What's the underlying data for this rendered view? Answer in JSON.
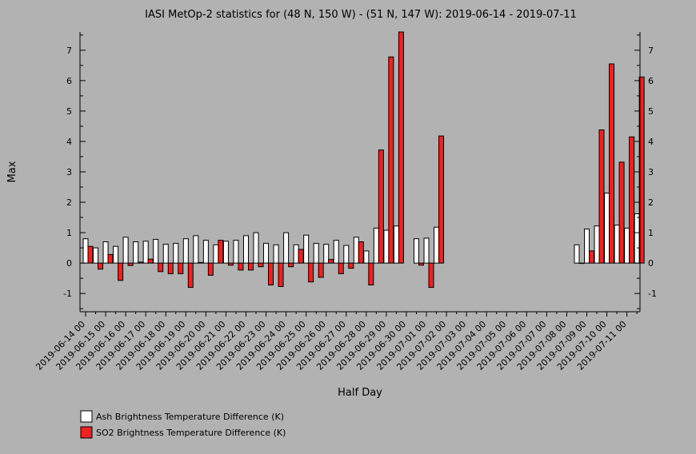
{
  "chart_data": {
    "type": "bar",
    "title": "IASI MetOp-2 statistics for (48 N, 150 W) - (51 N, 147 W): 2019-06-14 - 2019-07-11",
    "xlabel": "Half Day",
    "ylabel": "Max",
    "ylim": [
      -1.6,
      7.6
    ],
    "yticks": [
      -1,
      0,
      1,
      2,
      3,
      4,
      5,
      6,
      7
    ],
    "date_labels": [
      "2019-06-14 00",
      "2019-06-15 00",
      "2019-06-16 00",
      "2019-06-17 00",
      "2019-06-18 00",
      "2019-06-19 00",
      "2019-06-20 00",
      "2019-06-21 00",
      "2019-06-22 00",
      "2019-06-23 00",
      "2019-06-24 00",
      "2019-06-25 00",
      "2019-06-26 00",
      "2019-06-27 00",
      "2019-06-28 00",
      "2019-06-29 00",
      "2019-06-30 00",
      "2019-07-01 00",
      "2019-07-02 00",
      "2019-07-03 00",
      "2019-07-04 00",
      "2019-07-05 00",
      "2019-07-06 00",
      "2019-07-07 00",
      "2019-07-08 00",
      "2019-07-09 00",
      "2019-07-10 00",
      "2019-07-11 00"
    ],
    "periods": 56,
    "series": [
      {
        "name": "Ash Brightness Temperature Difference (K)",
        "color": "#ffffff",
        "values": [
          0.8,
          0.5,
          0.7,
          0.55,
          0.85,
          0.7,
          0.72,
          0.78,
          0.62,
          0.65,
          0.8,
          0.9,
          0.75,
          0.6,
          0.72,
          0.75,
          0.9,
          1.0,
          0.65,
          0.6,
          1.0,
          0.6,
          0.92,
          0.65,
          0.62,
          0.75,
          0.58,
          0.85,
          0.4,
          1.15,
          1.08,
          1.22,
          null,
          0.8,
          0.82,
          1.18,
          null,
          null,
          null,
          null,
          null,
          null,
          null,
          null,
          null,
          null,
          null,
          null,
          null,
          0.6,
          1.12,
          1.22,
          2.3,
          1.25,
          1.15,
          1.62
        ]
      },
      {
        "name": "SO2 Brightness Temperature Difference (K)",
        "color": "#ee2222",
        "values": [
          0.55,
          -0.2,
          0.28,
          -0.57,
          -0.08,
          0.03,
          0.13,
          -0.28,
          -0.35,
          -0.35,
          -0.8,
          0.02,
          -0.4,
          0.75,
          -0.07,
          -0.23,
          -0.23,
          -0.12,
          -0.72,
          -0.77,
          -0.12,
          0.45,
          -0.62,
          -0.47,
          0.12,
          -0.35,
          -0.17,
          0.7,
          -0.72,
          3.72,
          6.78,
          7.6,
          null,
          -0.07,
          -0.8,
          4.18,
          null,
          null,
          null,
          null,
          null,
          null,
          null,
          null,
          null,
          null,
          null,
          null,
          null,
          0.0,
          0.4,
          4.38,
          6.55,
          3.32,
          4.15,
          6.12
        ]
      }
    ],
    "legend_position": "bottom-left",
    "grid": false
  }
}
